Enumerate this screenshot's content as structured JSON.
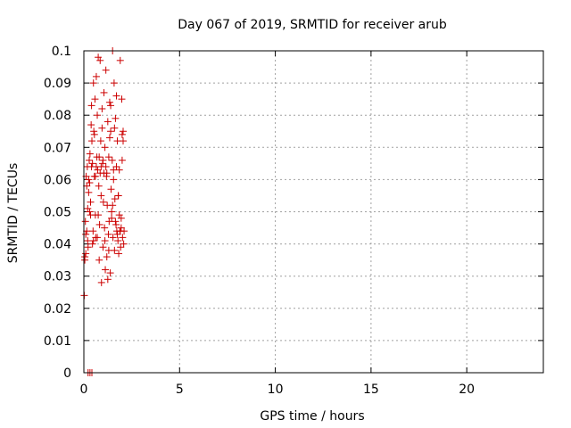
{
  "chart_data": {
    "type": "scatter",
    "title": "Day 067 of 2019, SRMTID for receiver arub",
    "xlabel": "GPS time / hours",
    "ylabel": "SRMTID / TECUs",
    "xlim": [
      0,
      24
    ],
    "ylim": [
      0,
      0.1
    ],
    "x_ticks": [
      0,
      5,
      10,
      15,
      20
    ],
    "x_tick_labels": [
      "0",
      "5",
      "10",
      "15",
      "20"
    ],
    "y_ticks": [
      0,
      0.01,
      0.02,
      0.03,
      0.04,
      0.05,
      0.06,
      0.07,
      0.08,
      0.09,
      0.1
    ],
    "y_tick_labels": [
      "0",
      "0.01",
      "0.02",
      "0.03",
      "0.04",
      "0.05",
      "0.06",
      "0.07",
      "0.08",
      "0.09",
      "0.1"
    ],
    "grid": true,
    "legend": "none",
    "marker": "+",
    "color": "#cc0000",
    "x": [
      0.02,
      0.05,
      0.08,
      0.1,
      0.12,
      0.15,
      0.18,
      0.2,
      0.22,
      0.25,
      0.28,
      0.3,
      0.32,
      0.35,
      0.38,
      0.4,
      0.42,
      0.45,
      0.48,
      0.5,
      0.52,
      0.55,
      0.58,
      0.6,
      0.62,
      0.65,
      0.68,
      0.7,
      0.72,
      0.75,
      0.78,
      0.8,
      0.82,
      0.85,
      0.88,
      0.9,
      0.92,
      0.95,
      0.98,
      1.0,
      1.02,
      1.05,
      1.08,
      1.1,
      1.12,
      1.15,
      1.18,
      1.2,
      1.22,
      1.25,
      1.28,
      1.3,
      1.32,
      1.35,
      1.38,
      1.4,
      1.42,
      1.45,
      1.48,
      1.5,
      1.52,
      1.55,
      1.58,
      1.6,
      1.62,
      1.65,
      1.68,
      1.7,
      1.72,
      1.75,
      1.78,
      1.8,
      1.82,
      1.85,
      1.88,
      1.9,
      1.92,
      1.95,
      1.98,
      2.0,
      2.02,
      2.05,
      2.08,
      2.1,
      0.05,
      0.15,
      0.25,
      0.35,
      0.45,
      0.55,
      0.65,
      0.75,
      0.85,
      0.95,
      1.05,
      1.15,
      1.25,
      1.35,
      1.45,
      1.55,
      1.65,
      1.75,
      1.85,
      1.95,
      2.05,
      0.1,
      0.3,
      0.5,
      0.7,
      0.9,
      1.1,
      1.3,
      1.5,
      1.7,
      1.9,
      0.2,
      0.4,
      0.6,
      0.8,
      1.0,
      1.2,
      1.4,
      1.6,
      1.8,
      2.0,
      0.22,
      0.32,
      0.42
    ],
    "y": [
      0.024,
      0.036,
      0.047,
      0.043,
      0.061,
      0.058,
      0.064,
      0.051,
      0.039,
      0.056,
      0.066,
      0.059,
      0.068,
      0.049,
      0.077,
      0.083,
      0.072,
      0.065,
      0.044,
      0.09,
      0.075,
      0.061,
      0.085,
      0.049,
      0.042,
      0.092,
      0.067,
      0.08,
      0.063,
      0.098,
      0.058,
      0.035,
      0.046,
      0.062,
      0.072,
      0.055,
      0.028,
      0.082,
      0.065,
      0.039,
      0.053,
      0.087,
      0.045,
      0.07,
      0.032,
      0.094,
      0.061,
      0.036,
      0.052,
      0.078,
      0.043,
      0.067,
      0.047,
      0.084,
      0.031,
      0.075,
      0.057,
      0.048,
      0.066,
      0.1,
      0.042,
      0.06,
      0.09,
      0.038,
      0.054,
      0.079,
      0.046,
      0.086,
      0.044,
      0.072,
      0.041,
      0.055,
      0.037,
      0.063,
      0.044,
      0.097,
      0.039,
      0.048,
      0.085,
      0.066,
      0.042,
      0.075,
      0.04,
      0.044,
      0.035,
      0.044,
      0.06,
      0.053,
      0.04,
      0.074,
      0.064,
      0.049,
      0.097,
      0.076,
      0.062,
      0.064,
      0.029,
      0.073,
      0.05,
      0.063,
      0.047,
      0.043,
      0.049,
      0.045,
      0.072,
      0.037,
      0.05,
      0.041,
      0.042,
      0.064,
      0.041,
      0.038,
      0.052,
      0.064,
      0.044,
      0.041,
      0.064,
      0.061,
      0.067,
      0.066,
      0.062,
      0.083,
      0.076,
      0.055,
      0.074,
      0.0,
      0.0,
      0.0
    ]
  }
}
